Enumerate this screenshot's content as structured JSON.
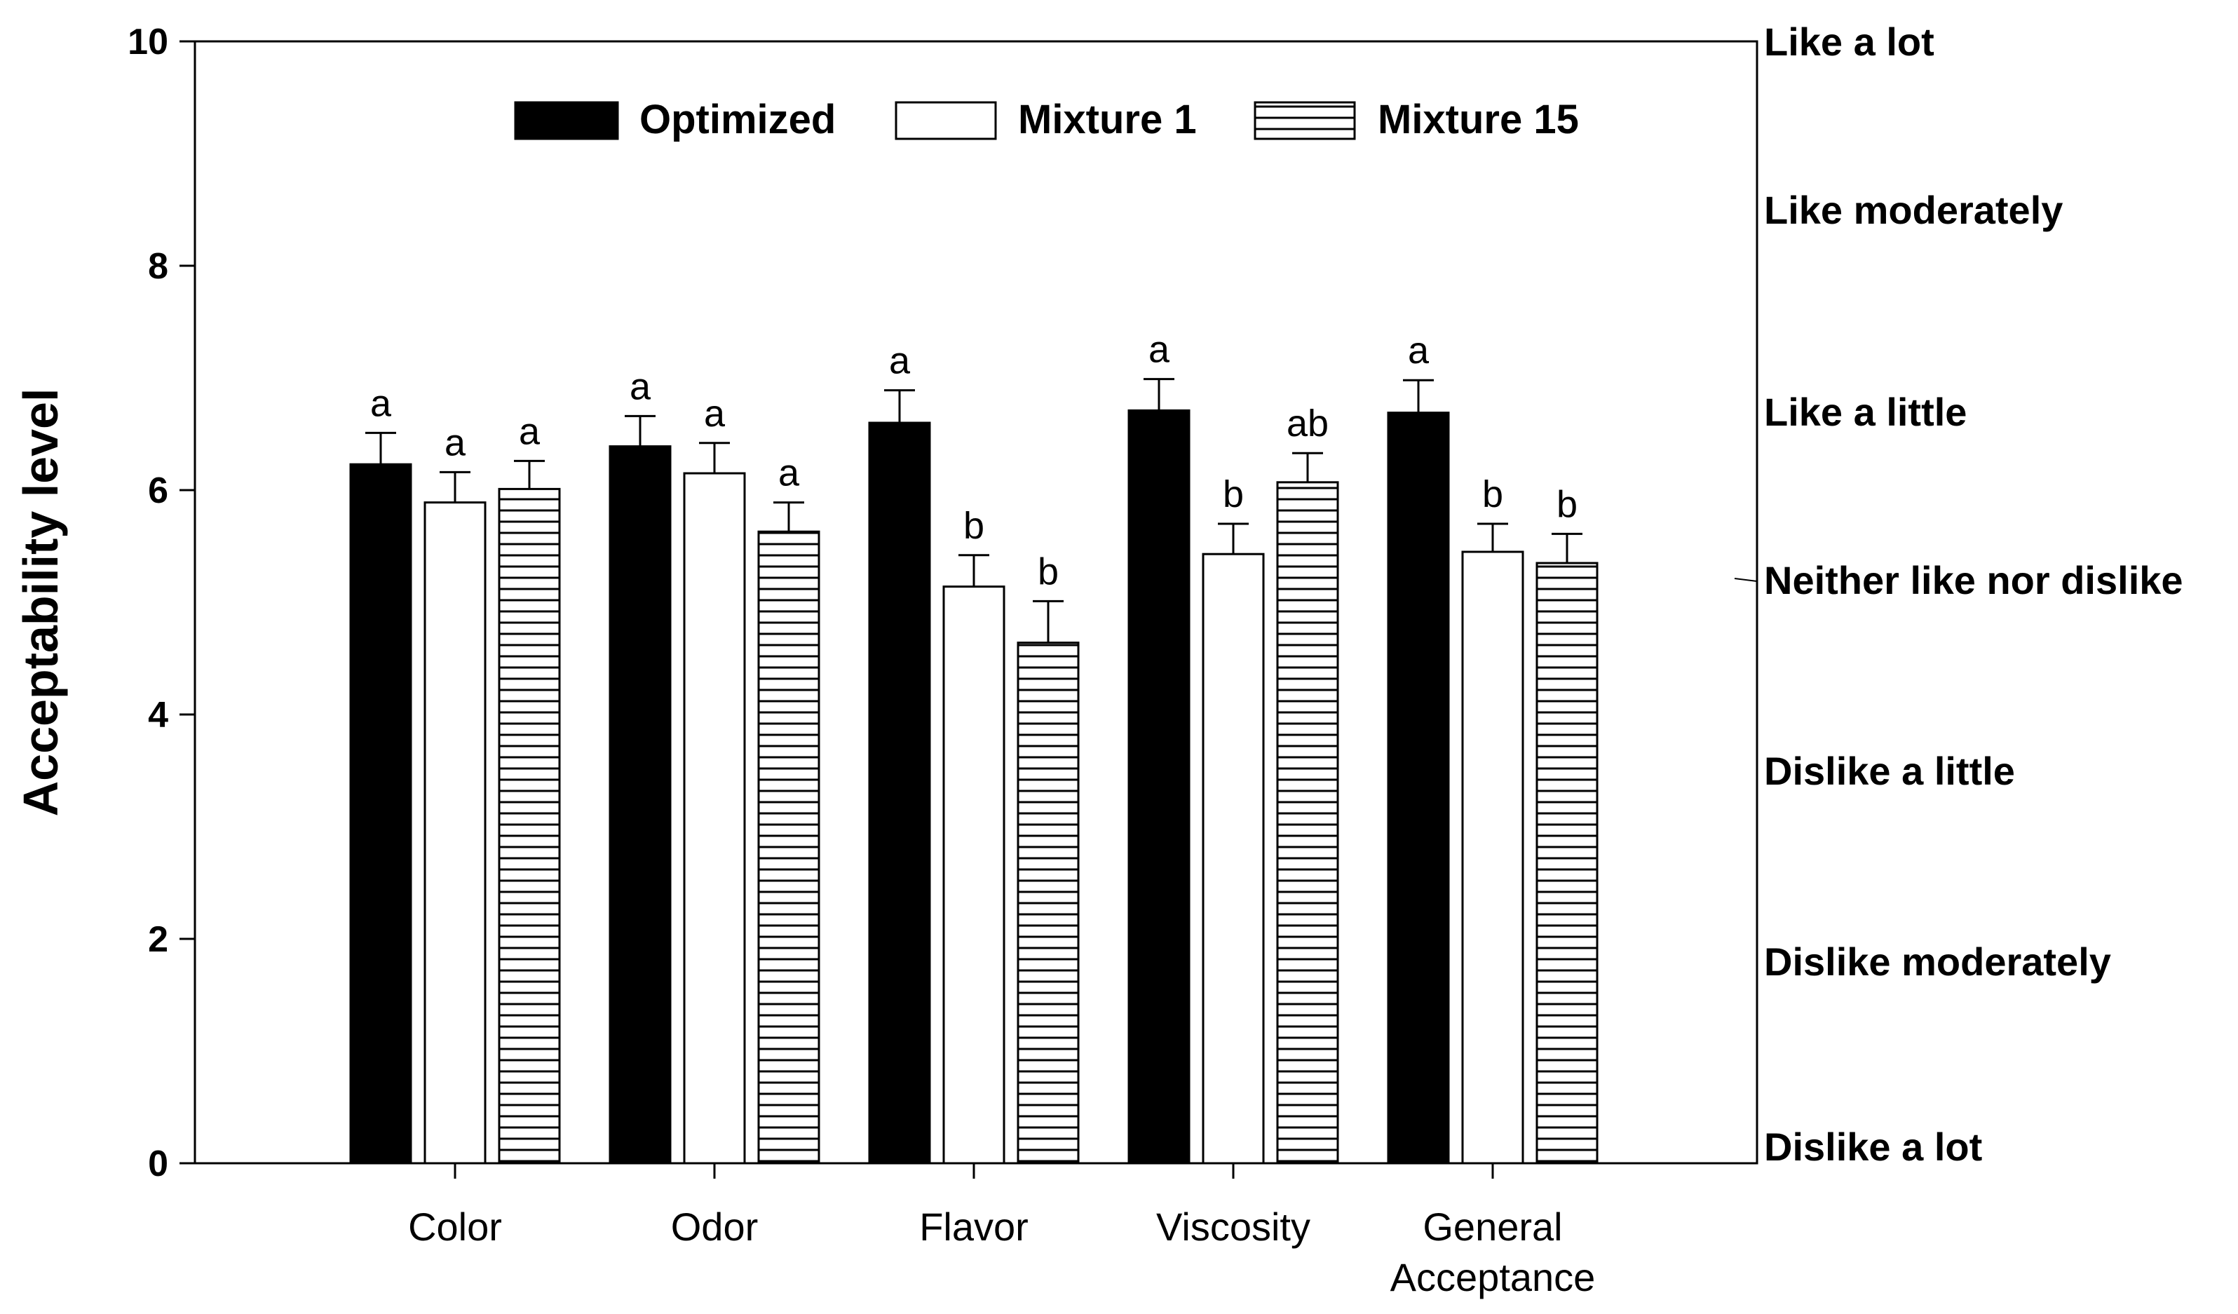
{
  "chart_data": {
    "type": "bar",
    "title": "",
    "xlabel": "",
    "ylabel": "Acceptability level",
    "ylim": [
      0,
      10
    ],
    "yticks": [
      0,
      2,
      4,
      6,
      8,
      10
    ],
    "grid": false,
    "legend_position": "top",
    "categories": [
      [
        "Color"
      ],
      [
        "Odor"
      ],
      [
        "Flavor"
      ],
      [
        "Viscosity"
      ],
      [
        "General",
        "Acceptance"
      ]
    ],
    "series": [
      {
        "name": "Optimized",
        "pattern": "solid",
        "values": [
          6.23,
          6.39,
          6.6,
          6.71,
          6.69
        ],
        "errors": [
          0.28,
          0.27,
          0.29,
          0.28,
          0.29
        ],
        "significance": [
          "a",
          "a",
          "a",
          "a",
          "a"
        ]
      },
      {
        "name": "Mixture 1",
        "pattern": "open",
        "values": [
          5.89,
          6.15,
          5.14,
          5.43,
          5.45
        ],
        "errors": [
          0.27,
          0.27,
          0.28,
          0.27,
          0.25
        ],
        "significance": [
          "a",
          "a",
          "b",
          "b",
          "b"
        ]
      },
      {
        "name": "Mixture 15",
        "pattern": "horizontal-lines",
        "values": [
          6.01,
          5.63,
          4.64,
          6.07,
          5.35
        ],
        "errors": [
          0.25,
          0.26,
          0.37,
          0.26,
          0.26
        ],
        "significance": [
          "a",
          "a",
          "b",
          "ab",
          "b"
        ]
      }
    ],
    "right_axis_labels": [
      {
        "text": "Like a lot",
        "value": 10.0
      },
      {
        "text": "Like moderately",
        "value": 8.5
      },
      {
        "text": "Like a little",
        "value": 6.7
      },
      {
        "text": "Neither like nor dislike",
        "value": 5.2
      },
      {
        "text": "Dislike a little",
        "value": 3.5
      },
      {
        "text": "Dislike moderately",
        "value": 1.8
      },
      {
        "text": "Dislike a lot",
        "value": 0.15
      }
    ],
    "colors": {
      "axis": "#000000",
      "solid_fill": "#000000",
      "open_fill": "#ffffff"
    }
  }
}
